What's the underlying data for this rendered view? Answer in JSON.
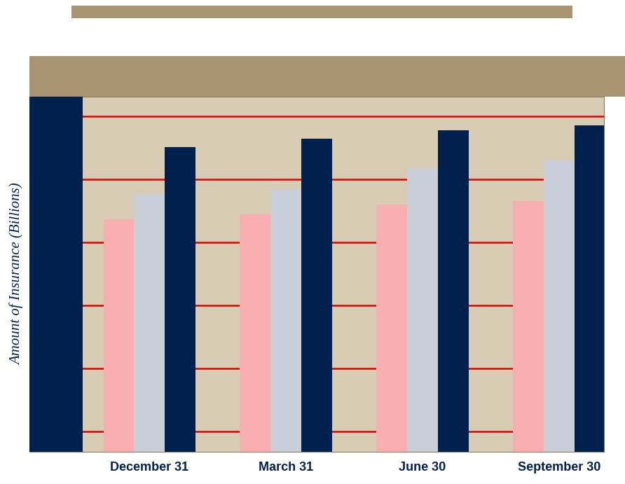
{
  "chart_data": {
    "type": "bar",
    "y_label": "Amount of Insurance (Billions)",
    "categories": [
      "December 31",
      "March 31",
      "June 30",
      "September 30"
    ],
    "series": [
      {
        "color": "#F9AFB2",
        "values": [
          437,
          444,
          460,
          466
        ]
      },
      {
        "color": "#C9CFD9",
        "values": [
          477,
          484,
          517,
          530
        ]
      },
      {
        "color": "#00214D",
        "values": [
          551,
          564,
          578,
          586
        ]
      }
    ],
    "ylim": [
      68,
      631
    ],
    "yticks": [
      100,
      200,
      300,
      400,
      500,
      600
    ],
    "grid": true,
    "tick_labels": "x"
  }
}
